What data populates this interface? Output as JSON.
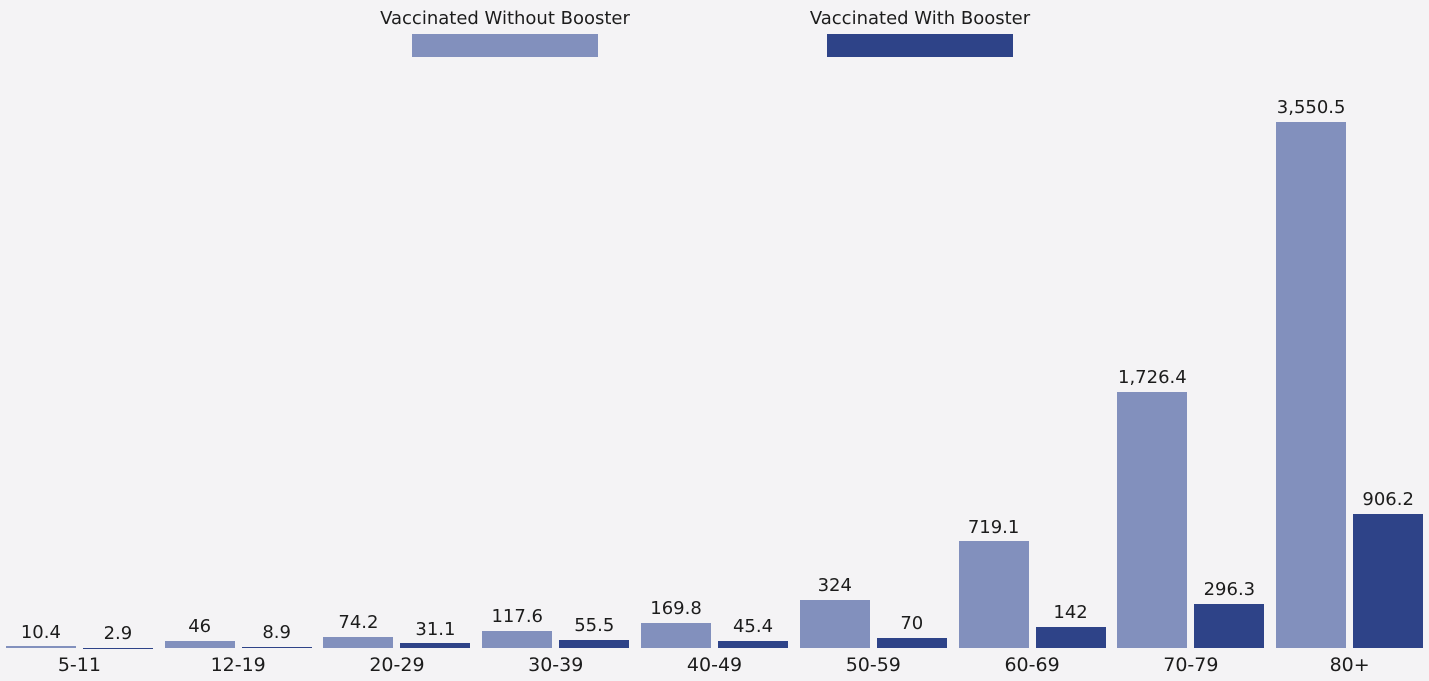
{
  "background_color": "#f4f3f5",
  "text_color": "#1c1c1c",
  "legend": {
    "items": [
      {
        "label": "Vaccinated Without Booster",
        "color": "#8290bd"
      },
      {
        "label": "Vaccinated With Booster",
        "color": "#2e4388"
      }
    ]
  },
  "chart_data": {
    "type": "bar",
    "title": "",
    "xlabel": "",
    "ylabel": "",
    "grid": false,
    "axes_visible": false,
    "legend_position": "top",
    "value_labels": true,
    "ylim": [
      0,
      3600
    ],
    "categories": [
      "5-11",
      "12-19",
      "20-29",
      "30-39",
      "40-49",
      "50-59",
      "60-69",
      "70-79",
      "80+"
    ],
    "series": [
      {
        "name": "Vaccinated Without Booster",
        "color": "#8290bd",
        "values": [
          10.4,
          46,
          74.2,
          117.6,
          169.8,
          324,
          719.1,
          1726.4,
          3550.5
        ],
        "labels": [
          "10.4",
          "46",
          "74.2",
          "117.6",
          "169.8",
          "324",
          "719.1",
          "1,726.4",
          "3,550.5"
        ]
      },
      {
        "name": "Vaccinated With Booster",
        "color": "#2e4388",
        "values": [
          2.9,
          8.9,
          31.1,
          55.5,
          45.4,
          70,
          142,
          296.3,
          906.2
        ],
        "labels": [
          "2.9",
          "8.9",
          "31.1",
          "55.5",
          "45.4",
          "70",
          "142",
          "296.3",
          "906.2"
        ]
      }
    ]
  }
}
